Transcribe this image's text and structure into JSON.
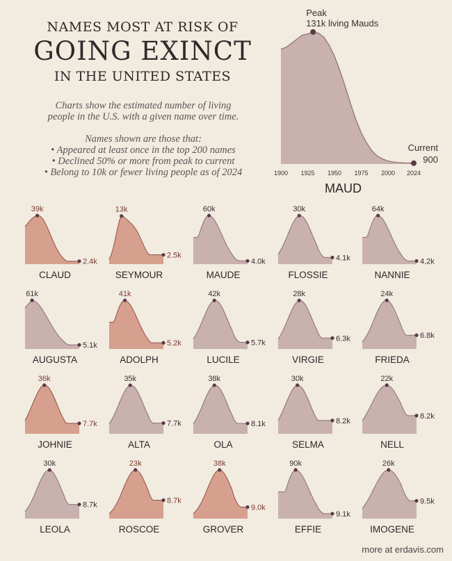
{
  "header": {
    "line1": "NAMES MOST AT RISK OF",
    "line2": "GOING EXINCT",
    "line3": "IN THE UNITED STATES"
  },
  "description": {
    "intro_lines": [
      "Charts show the estimated number of living",
      "people in the U.S. with a given name over time."
    ],
    "criteria_lines": [
      "Names shown are those that:",
      "• Appeared  at least once in the top 200 names",
      "• Declined 50% or more from peak to current",
      "• Belong to 10k or fewer living people as of 2024"
    ]
  },
  "credit": "more at erdavis.com",
  "colors": {
    "background": "#f2ebe0",
    "mauve_fill": "#c8b1af",
    "mauve_line": "#8a6f74",
    "orange_fill": "#d69f8e",
    "orange_line": "#8f5546",
    "dot": "#5a3a47",
    "label": "#3a3031",
    "orange_label": "#7a3e30"
  },
  "chart_data": [
    {
      "type": "area",
      "name": "MAUD",
      "xlabel": "",
      "ylabel": "",
      "x_ticks": [
        1900,
        1925,
        1950,
        1975,
        2000,
        2024
      ],
      "xlim": [
        1900,
        2024
      ],
      "peak_label": "Peak",
      "peak_value_label": "131k living Mauds",
      "current_label": "Current",
      "current_value_label": "900",
      "x": [
        1900,
        1905,
        1910,
        1915,
        1920,
        1925,
        1930,
        1935,
        1940,
        1945,
        1950,
        1955,
        1960,
        1965,
        1970,
        1975,
        1980,
        1985,
        1990,
        1995,
        2000,
        2005,
        2010,
        2015,
        2020,
        2024
      ],
      "y": [
        114000,
        116000,
        120000,
        124000,
        128000,
        129000,
        131000,
        130000,
        126000,
        118000,
        107000,
        93000,
        77000,
        60000,
        44000,
        31000,
        21000,
        13000,
        8000,
        5000,
        3000,
        2000,
        1500,
        1200,
        1000,
        900
      ]
    },
    {
      "type": "area",
      "name": "CLAUD",
      "highlight": true,
      "peak": "39k",
      "current": "2.4k",
      "peak_year": 1930,
      "shape": "early_plateau"
    },
    {
      "type": "area",
      "name": "SEYMOUR",
      "highlight": true,
      "peak": "13k",
      "current": "2.5k",
      "peak_year": 1930,
      "shape": "plateau_late"
    },
    {
      "type": "area",
      "name": "MAUDE",
      "highlight": false,
      "peak": "60k",
      "current": "4.0k",
      "peak_year": 1935,
      "shape": "early"
    },
    {
      "type": "area",
      "name": "FLOSSIE",
      "highlight": false,
      "peak": "30k",
      "current": "4.1k",
      "peak_year": 1950,
      "shape": "bell"
    },
    {
      "type": "area",
      "name": "NANNIE",
      "highlight": false,
      "peak": "64k",
      "current": "4.2k",
      "peak_year": 1935,
      "shape": "early"
    },
    {
      "type": "area",
      "name": "AUGUSTA",
      "highlight": false,
      "peak": "61k",
      "current": "5.1k",
      "peak_year": 1915,
      "shape": "very_early"
    },
    {
      "type": "area",
      "name": "ADOLPH",
      "highlight": true,
      "peak": "41k",
      "current": "5.2k",
      "peak_year": 1935,
      "shape": "early"
    },
    {
      "type": "area",
      "name": "LUCILE",
      "highlight": false,
      "peak": "42k",
      "current": "5.7k",
      "peak_year": 1950,
      "shape": "bell"
    },
    {
      "type": "area",
      "name": "VIRGIE",
      "highlight": false,
      "peak": "28k",
      "current": "6.3k",
      "peak_year": 1950,
      "shape": "bell"
    },
    {
      "type": "area",
      "name": "FRIEDA",
      "highlight": false,
      "peak": "24k",
      "current": "6.8k",
      "peak_year": 1955,
      "shape": "bell"
    },
    {
      "type": "area",
      "name": "JOHNIE",
      "highlight": true,
      "peak": "36k",
      "current": "7.7k",
      "peak_year": 1945,
      "shape": "bell"
    },
    {
      "type": "area",
      "name": "ALTA",
      "highlight": false,
      "peak": "35k",
      "current": "7.7k",
      "peak_year": 1950,
      "shape": "bell"
    },
    {
      "type": "area",
      "name": "OLA",
      "highlight": false,
      "peak": "38k",
      "current": "8.1k",
      "peak_year": 1950,
      "shape": "bell"
    },
    {
      "type": "area",
      "name": "SELMA",
      "highlight": false,
      "peak": "30k",
      "current": "8.2k",
      "peak_year": 1945,
      "shape": "bell"
    },
    {
      "type": "area",
      "name": "NELL",
      "highlight": false,
      "peak": "22k",
      "current": "8.2k",
      "peak_year": 1955,
      "shape": "broad"
    },
    {
      "type": "area",
      "name": "LEOLA",
      "highlight": false,
      "peak": "30k",
      "current": "8.7k",
      "peak_year": 1955,
      "shape": "bell"
    },
    {
      "type": "area",
      "name": "ROSCOE",
      "highlight": true,
      "peak": "23k",
      "current": "8.7k",
      "peak_year": 1960,
      "shape": "bell"
    },
    {
      "type": "area",
      "name": "GROVER",
      "highlight": true,
      "peak": "38k",
      "current": "9.0k",
      "peak_year": 1960,
      "shape": "bell"
    },
    {
      "type": "area",
      "name": "EFFIE",
      "highlight": false,
      "peak": "90k",
      "current": "9.1k",
      "peak_year": 1940,
      "shape": "early"
    },
    {
      "type": "area",
      "name": "IMOGENE",
      "highlight": false,
      "peak": "26k",
      "current": "9.5k",
      "peak_year": 1960,
      "shape": "broad"
    }
  ]
}
